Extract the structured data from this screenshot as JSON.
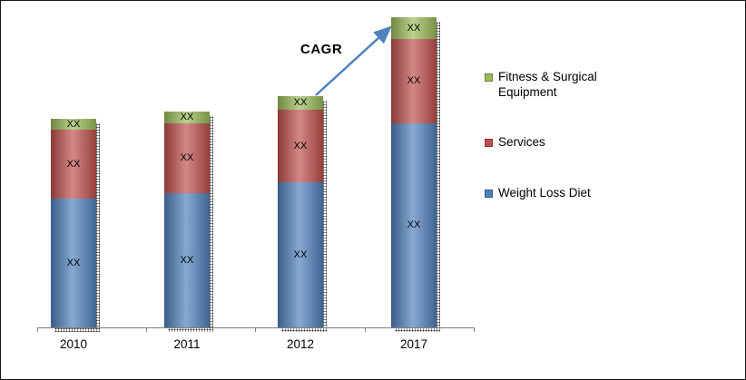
{
  "chart_data": {
    "type": "bar",
    "stacked": true,
    "title": "",
    "categories": [
      "2010",
      "2011",
      "2012",
      "2017"
    ],
    "series": [
      {
        "name": "Weight Loss Diet",
        "color": "#4F81BD",
        "values": [
          142,
          148,
          160,
          225
        ]
      },
      {
        "name": "Services",
        "color": "#C0504D",
        "values": [
          76,
          77,
          80,
          93
        ]
      },
      {
        "name": "Fitness & Surgical Equipment",
        "color": "#9BBB59",
        "values": [
          12,
          13,
          15,
          24
        ]
      }
    ],
    "data_label": "XX",
    "annotation": "CAGR",
    "arrow_color": "#4F81BD",
    "legend_position": "right",
    "grid": false,
    "ylim": [
      0,
      350
    ]
  }
}
